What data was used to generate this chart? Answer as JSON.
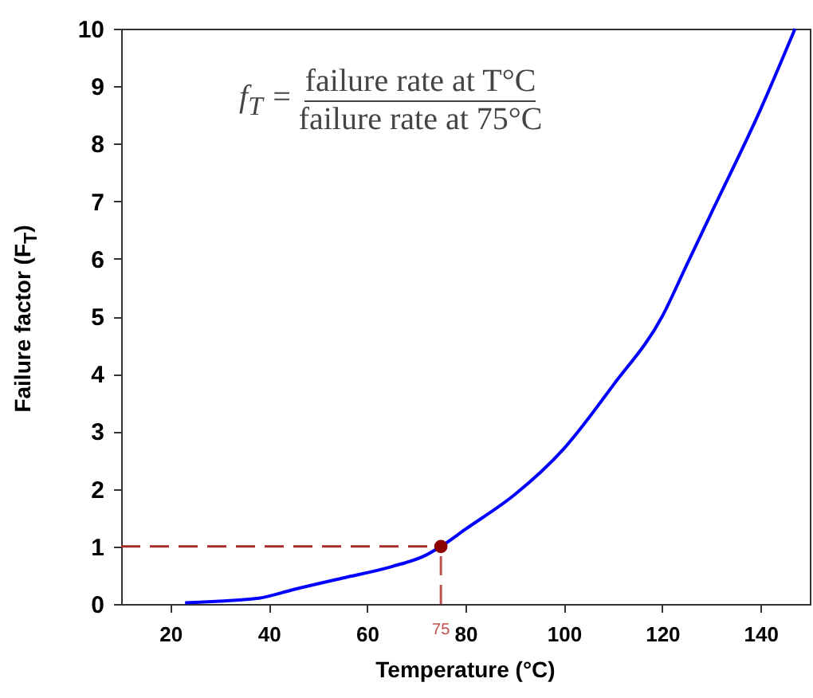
{
  "chart_data": {
    "type": "line",
    "xlabel": "Temperature (°C)",
    "ylabel": "Failure factor (F$_{T}$)",
    "annotations": [
      "f$_{T}$ =",
      "failure rate at T°C",
      "failure rate at 75°C"
    ],
    "xlim": [
      10,
      150
    ],
    "xticks": [
      20,
      40,
      60,
      80,
      100,
      120,
      140
    ],
    "ylim": [
      0,
      10
    ],
    "yticks": [
      0,
      1,
      2,
      3,
      4,
      5,
      6,
      7,
      8,
      9,
      10
    ],
    "grid": false,
    "series": [
      {
        "color": "#0000ff",
        "marker": "none",
        "x": [
          23,
          30,
          38,
          45,
          55,
          65,
          72,
          75,
          80,
          90,
          100,
          110,
          120,
          125,
          130,
          140,
          147
        ],
        "values": [
          0.02,
          0.05,
          0.1,
          0.25,
          0.45,
          0.65,
          0.85,
          1,
          1.3,
          1.9,
          2.7,
          3.8,
          5.0,
          5.9,
          6.8,
          8.6,
          10
        ]
      },
      {
        "type": "scatter",
        "color": "#8b0000",
        "marker": "circle",
        "x": [
          75
        ],
        "values": [
          1
        ]
      }
    ],
    "ref_lines": [
      {
        "axis": "x",
        "value": 75,
        "label": "75",
        "color": "#c0504d",
        "line_style": "dashed"
      },
      {
        "axis": "y",
        "value": 1,
        "color": "#a52a2a",
        "line_style": "dashed"
      }
    ]
  }
}
